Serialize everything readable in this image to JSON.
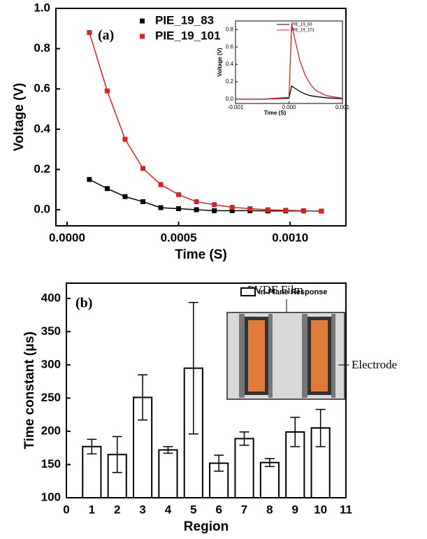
{
  "chart_data": [
    {
      "type": "scatter",
      "xlabel": "Time (S)",
      "ylabel": "Voltage (V)",
      "annotation": "(a)",
      "x": [
        0.0001,
        0.00018,
        0.00026,
        0.00034,
        0.00042,
        0.0005,
        0.00058,
        0.00066,
        0.00074,
        0.00082,
        0.0009,
        0.00098,
        0.00106,
        0.00114
      ],
      "series": [
        {
          "name": "PIE_19_83",
          "color": "#000000",
          "values": [
            0.15,
            0.105,
            0.065,
            0.04,
            0.01,
            0.005,
            0.0,
            -0.005,
            -0.005,
            -0.005,
            -0.006,
            -0.006,
            -0.006,
            -0.007
          ]
        },
        {
          "name": "PIE_19_101",
          "color": "#e02020",
          "values": [
            0.88,
            0.59,
            0.35,
            0.205,
            0.125,
            0.075,
            0.04,
            0.025,
            0.012,
            0.005,
            0.0,
            -0.003,
            -0.005,
            -0.007
          ]
        }
      ],
      "xlim": [
        -5e-05,
        0.00125
      ],
      "xticks": [
        {
          "value": 0,
          "label": "0.0000"
        },
        {
          "value": 0.0005,
          "label": "0.0005"
        },
        {
          "value": 0.001,
          "label": "0.0010"
        }
      ],
      "ylim": [
        -0.08,
        1.0
      ],
      "yticks": [
        {
          "value": 0,
          "label": "0.0"
        },
        0.2,
        0.4,
        0.6,
        0.8,
        {
          "value": 1,
          "label": "1.0"
        }
      ]
    },
    {
      "type": "line",
      "xlabel": "Time (S)",
      "ylabel": "Voltage (V)",
      "x": [
        -0.001,
        -0.0005,
        0,
        5e-05,
        0.0001,
        0.0002,
        0.0003,
        0.0004,
        0.0005,
        0.0007,
        0.001
      ],
      "series": [
        {
          "name": "PIE_19_83",
          "color": "#000000",
          "values": [
            0,
            0,
            0.01,
            0.15,
            0.13,
            0.09,
            0.06,
            0.04,
            0.03,
            0.015,
            0.005
          ]
        },
        {
          "name": "PIE_19_101",
          "color": "#e02020",
          "values": [
            0,
            0,
            0.02,
            0.87,
            0.72,
            0.45,
            0.28,
            0.17,
            0.1,
            0.04,
            0.01
          ]
        }
      ],
      "xlim": [
        -0.001,
        0.001
      ],
      "xticks": [
        -0.001,
        {
          "value": 0,
          "label": "0.000"
        },
        0.001
      ],
      "ylim": [
        -0.05,
        0.9
      ],
      "yticks": [
        {
          "value": 0,
          "label": "0.0"
        },
        0.2,
        0.4,
        0.6,
        0.8
      ]
    },
    {
      "type": "bar",
      "xlabel": "Region",
      "ylabel": "Time constant (μs)",
      "annotations": [
        "(b)",
        "PVDF Film",
        "Electrode"
      ],
      "x": [
        1,
        2,
        3,
        4,
        5,
        6,
        7,
        8,
        9,
        10
      ],
      "series": [
        {
          "name": "In-Plane Response",
          "color": "#ffffff",
          "values": [
            177,
            165,
            251,
            172,
            295,
            152,
            189,
            153,
            199,
            205
          ],
          "errors": [
            11,
            27,
            34,
            5,
            99,
            12,
            10,
            6,
            22,
            28
          ]
        }
      ],
      "xlim": [
        0,
        11
      ],
      "xticks": [
        0,
        1,
        2,
        3,
        4,
        5,
        6,
        7,
        8,
        9,
        10,
        11
      ],
      "ylim": [
        100,
        423
      ],
      "yticks": [
        100,
        150,
        200,
        250,
        300,
        350,
        400
      ]
    }
  ]
}
